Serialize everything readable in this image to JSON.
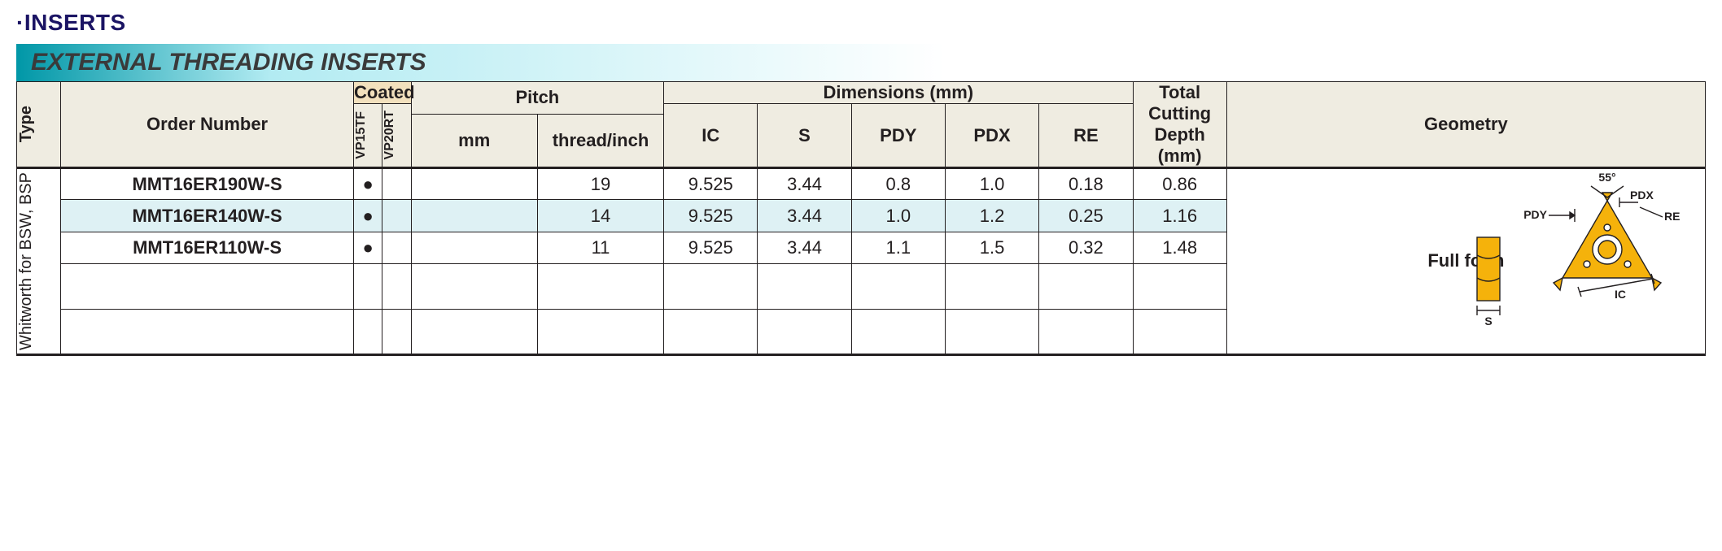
{
  "titles": {
    "top": "·INSERTS",
    "banner": "EXTERNAL THREADING INSERTS"
  },
  "headers": {
    "type": "Type",
    "order": "Order Number",
    "coated": "Coated",
    "vp15tf": "VP15TF",
    "vp20rt": "VP20RT",
    "pitch": "Pitch",
    "pitch_mm": "mm",
    "pitch_tpi": "thread/inch",
    "dimensions": "Dimensions (mm)",
    "ic": "IC",
    "s": "S",
    "pdy": "PDY",
    "pdx": "PDX",
    "re": "RE",
    "tcd_l1": "Total",
    "tcd_l2": "Cutting",
    "tcd_l3": "Depth",
    "tcd_l4": "(mm)",
    "geometry": "Geometry"
  },
  "type_label": "Whitworth for BSW, BSP",
  "rows": [
    {
      "order": "MMT16ER190W-S",
      "vp15tf": "●",
      "vp20rt": "",
      "pmm": "",
      "tpi": "19",
      "ic": "9.525",
      "s": "3.44",
      "pdy": "0.8",
      "pdx": "1.0",
      "re": "0.18",
      "tcd": "0.86",
      "hl": false
    },
    {
      "order": "MMT16ER140W-S",
      "vp15tf": "●",
      "vp20rt": "",
      "pmm": "",
      "tpi": "14",
      "ic": "9.525",
      "s": "3.44",
      "pdy": "1.0",
      "pdx": "1.2",
      "re": "0.25",
      "tcd": "1.16",
      "hl": true
    },
    {
      "order": "MMT16ER110W-S",
      "vp15tf": "●",
      "vp20rt": "",
      "pmm": "",
      "tpi": "11",
      "ic": "9.525",
      "s": "3.44",
      "pdy": "1.1",
      "pdx": "1.5",
      "re": "0.32",
      "tcd": "1.48",
      "hl": false
    }
  ],
  "empty_rows": 2,
  "geometry": {
    "label": "Full form",
    "angle": "55°",
    "pdx": "PDX",
    "re": "RE",
    "pdy": "PDY",
    "s": "S",
    "ic": "IC",
    "colors": {
      "insert": "#f5b20b",
      "line": "#231f20",
      "dim": "#231f20"
    }
  }
}
